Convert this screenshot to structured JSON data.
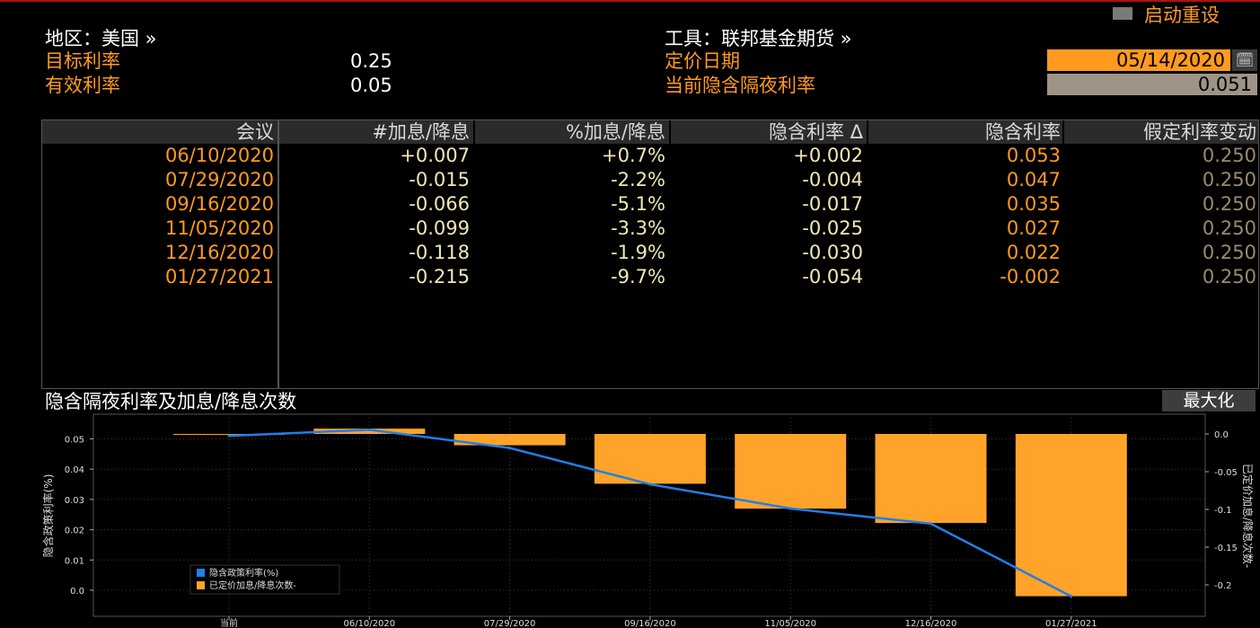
{
  "header": {
    "region_label": "地区：美国 »",
    "instrument_label": "工具：联邦基金期货 »",
    "reset_label": "启动重设",
    "target_rate_label": "目标利率",
    "target_rate_value": "0.25",
    "effective_rate_label": "有效利率",
    "effective_rate_value": "0.05",
    "pricing_date_label": "定价日期",
    "pricing_date_value": "05/14/2020",
    "implied_overnight_label": "当前隐含隔夜利率",
    "implied_overnight_value": "0.051",
    "calendar_icon": "calendar-icon"
  },
  "table": {
    "columns": [
      "会议",
      "#加息/降息",
      "%加息/降息",
      "隐含利率 Δ",
      "隐含利率",
      "假定利率变动"
    ],
    "rows": [
      {
        "meeting": "06/10/2020",
        "hikes": "+0.007",
        "pct": "+0.7%",
        "delta": "+0.002",
        "implied": "0.053",
        "assumed": "0.250"
      },
      {
        "meeting": "07/29/2020",
        "hikes": "-0.015",
        "pct": "-2.2%",
        "delta": "-0.004",
        "implied": "0.047",
        "assumed": "0.250"
      },
      {
        "meeting": "09/16/2020",
        "hikes": "-0.066",
        "pct": "-5.1%",
        "delta": "-0.017",
        "implied": "0.035",
        "assumed": "0.250"
      },
      {
        "meeting": "11/05/2020",
        "hikes": "-0.099",
        "pct": "-3.3%",
        "delta": "-0.025",
        "implied": "0.027",
        "assumed": "0.250"
      },
      {
        "meeting": "12/16/2020",
        "hikes": "-0.118",
        "pct": "-1.9%",
        "delta": "-0.030",
        "implied": "0.022",
        "assumed": "0.250"
      },
      {
        "meeting": "01/27/2021",
        "hikes": "-0.215",
        "pct": "-9.7%",
        "delta": "-0.054",
        "implied": "-0.002",
        "assumed": "0.250"
      }
    ]
  },
  "chart": {
    "title": "隐含隔夜利率及加息/降息次数",
    "maximize_label": "最大化",
    "colors": {
      "line": "#1f7fe8",
      "bar": "#ffa32a"
    }
  },
  "chart_data": {
    "type": "bar",
    "categories": [
      "当前",
      "06/10/2020",
      "07/29/2020",
      "09/16/2020",
      "11/05/2020",
      "12/16/2020",
      "01/27/2021"
    ],
    "series": [
      {
        "name": "隐含政策利率(%)",
        "type": "line",
        "axis": "left",
        "values": [
          0.051,
          0.053,
          0.047,
          0.035,
          0.027,
          0.022,
          -0.002
        ]
      },
      {
        "name": "已定价加息/降息次数-",
        "type": "bar",
        "axis": "right",
        "values": [
          0.0,
          0.007,
          -0.015,
          -0.066,
          -0.099,
          -0.118,
          -0.215
        ]
      }
    ],
    "ylabel": "隐含政策利率(%)",
    "ylabel_right": "已定价加息/降息次数-",
    "ylim": [
      -0.01,
      0.058
    ],
    "ylim_right": [
      -0.215,
      0.0
    ],
    "yticks": [
      "0.0",
      "0.01",
      "0.02",
      "0.03",
      "0.04",
      "0.05"
    ],
    "yticks_right": [
      "0.0",
      "-0.05",
      "-0.1",
      "-0.15",
      "-0.2"
    ],
    "grid": true,
    "legend_position": "bottom-left"
  }
}
